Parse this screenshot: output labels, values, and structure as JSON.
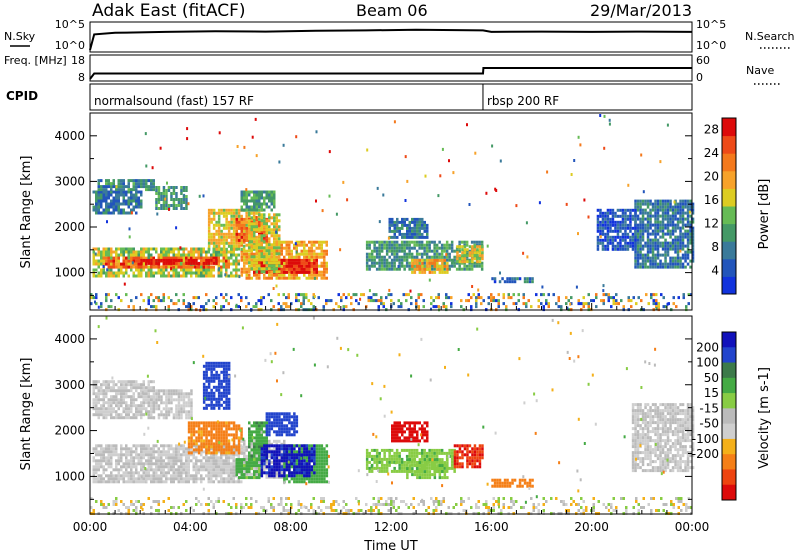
{
  "header": {
    "station": "Adak East (fitACF)",
    "beam": "Beam 06",
    "date": "29/Mar/2013"
  },
  "colors": {
    "power_scale": [
      "#1133dd",
      "#2255bb",
      "#3a7a9a",
      "#449966",
      "#66bb55",
      "#ddcc22",
      "#f7a22a",
      "#f4791c",
      "#ee4a18",
      "#dd0a0a"
    ],
    "velocity_scale": [
      "#1111bb",
      "#2244cc",
      "#3c7a4a",
      "#44aa44",
      "#88cc44",
      "#bbbbbb",
      "#cfcfcf",
      "#f4b01a",
      "#f57f17",
      "#ee4410",
      "#dd0a0a"
    ],
    "ground_scatter": "#aaaaaa"
  },
  "chart_data": [
    {
      "type": "line",
      "panel": "noise-sky-search",
      "ylabel_left": "N.Sky",
      "ylabel_right": "N.Search",
      "ytick_labels_left": [
        "10^5",
        "10^0"
      ],
      "ytick_labels_right": [
        "10^5",
        "10^0"
      ],
      "yscale": "log",
      "series": [
        {
          "x": [
            "00:00",
            "00:10",
            "01:00",
            "03:00",
            "05:00",
            "07:00",
            "09:00",
            "11:00",
            "13:00",
            "15:40",
            "16:00",
            "18:00",
            "20:00",
            "22:00",
            "24:00"
          ],
          "y": [
            1,
            1000,
            2000,
            3000,
            4000,
            3500,
            5000,
            6000,
            8000,
            6000,
            3000,
            3500,
            3000,
            3500,
            3000
          ]
        }
      ]
    },
    {
      "type": "line",
      "panel": "frequency-nave",
      "ylabel_left": "Freq. [MHz]",
      "ylabel_right": "Nave",
      "ytick_labels_left": [
        "18",
        "8"
      ],
      "ytick_labels_right": [
        "60",
        "0"
      ],
      "series": [
        {
          "x": [
            "00:00",
            "00:10",
            "15:40",
            "15:41",
            "24:00"
          ],
          "y": [
            8,
            10.5,
            10.5,
            13,
            13
          ]
        }
      ]
    },
    {
      "type": "table",
      "panel": "cpid",
      "label": "CPID",
      "segments": [
        {
          "start": "00:00",
          "end": "15:40",
          "name": "normalsound (fast) 157 RF"
        },
        {
          "start": "15:40",
          "end": "24:00",
          "name": "rbsp 200 RF"
        }
      ]
    },
    {
      "type": "heatmap",
      "panel": "power",
      "ylabel": "Slant Range [km]",
      "yticks": [
        1000,
        2000,
        3000,
        4000
      ],
      "ylim": [
        180,
        4500
      ],
      "colorbar_label": "Power [dB]",
      "colorbar_ticks": [
        4,
        8,
        12,
        16,
        20,
        24,
        28
      ],
      "clim": [
        0,
        30
      ],
      "regions": [
        {
          "t": [
            0.1,
            5.9
          ],
          "r": [
            900,
            1550
          ],
          "v": 15
        },
        {
          "t": [
            0.5,
            5.5
          ],
          "r": [
            1100,
            1350
          ],
          "v": 24
        },
        {
          "t": [
            2.0,
            5.0
          ],
          "r": [
            1200,
            1300
          ],
          "v": 30
        },
        {
          "t": [
            6.0,
            9.4
          ],
          "r": [
            900,
            1700
          ],
          "v": 20
        },
        {
          "t": [
            6.5,
            9.0
          ],
          "r": [
            1000,
            1300
          ],
          "v": 28
        },
        {
          "t": [
            4.7,
            6.8
          ],
          "r": [
            1500,
            2400
          ],
          "v": 17
        },
        {
          "t": [
            5.8,
            7.0
          ],
          "r": [
            1700,
            2200
          ],
          "v": 24
        },
        {
          "t": [
            6.3,
            7.5
          ],
          "r": [
            1000,
            2300
          ],
          "v": 16
        },
        {
          "t": [
            6.0,
            7.3
          ],
          "r": [
            2400,
            2800
          ],
          "v": 11
        },
        {
          "t": [
            0.1,
            2.0
          ],
          "r": [
            2300,
            2800
          ],
          "v": 7
        },
        {
          "t": [
            0.3,
            2.5
          ],
          "r": [
            2800,
            3050
          ],
          "v": 9
        },
        {
          "t": [
            2.6,
            3.8
          ],
          "r": [
            2400,
            2900
          ],
          "v": 10
        },
        {
          "t": [
            11.0,
            15.6
          ],
          "r": [
            1100,
            1700
          ],
          "v": 10
        },
        {
          "t": [
            12.8,
            14.2
          ],
          "r": [
            1000,
            1300
          ],
          "v": 20
        },
        {
          "t": [
            14.6,
            15.6
          ],
          "r": [
            1250,
            1600
          ],
          "v": 17
        },
        {
          "t": [
            11.9,
            13.4
          ],
          "r": [
            1800,
            2200
          ],
          "v": 7
        },
        {
          "t": [
            16.0,
            17.6
          ],
          "r": [
            800,
            900
          ],
          "v": 6
        },
        {
          "t": [
            21.7,
            24.0
          ],
          "r": [
            1100,
            2600
          ],
          "v": 7
        },
        {
          "t": [
            20.2,
            21.7
          ],
          "r": [
            1500,
            2400
          ],
          "v": 4
        },
        {
          "t": [
            0.0,
            24.0
          ],
          "r": [
            180,
            550
          ],
          "v": 12
        }
      ]
    },
    {
      "type": "heatmap",
      "panel": "velocity",
      "ylabel": "Slant Range [km]",
      "yticks": [
        1000,
        2000,
        3000,
        4000
      ],
      "ylim": [
        180,
        4500
      ],
      "xlabel": "Time UT",
      "xtick_labels": [
        "00:00",
        "04:00",
        "08:00",
        "12:00",
        "16:00",
        "20:00",
        "00:00"
      ],
      "xlim": [
        0,
        24
      ],
      "colorbar_label": "Velocity [m s-1]",
      "colorbar_ticks": [
        200,
        100,
        50,
        15,
        -15,
        -50,
        -100,
        -200
      ],
      "clim": [
        250,
        -250
      ],
      "regions": [
        {
          "t": [
            0.1,
            6.0
          ],
          "r": [
            900,
            1700
          ],
          "v": 0
        },
        {
          "t": [
            3.9,
            6.0
          ],
          "r": [
            1500,
            2200
          ],
          "v": -40
        },
        {
          "t": [
            6.0,
            7.7
          ],
          "r": [
            1000,
            1800
          ],
          "v": 0
        },
        {
          "t": [
            7.7,
            9.4
          ],
          "r": [
            900,
            1700
          ],
          "v": 60
        },
        {
          "t": [
            6.3,
            7.0
          ],
          "r": [
            1400,
            2200
          ],
          "v": 70
        },
        {
          "t": [
            5.8,
            6.8
          ],
          "r": [
            1000,
            1400
          ],
          "v": 40
        },
        {
          "t": [
            7.0,
            8.2
          ],
          "r": [
            1900,
            2400
          ],
          "v": 200
        },
        {
          "t": [
            6.8,
            8.9
          ],
          "r": [
            1000,
            1700
          ],
          "v": 230
        },
        {
          "t": [
            4.5,
            5.5
          ],
          "r": [
            2500,
            3500
          ],
          "v": 200
        },
        {
          "t": [
            0.1,
            2.5
          ],
          "r": [
            2300,
            3100
          ],
          "v": 0
        },
        {
          "t": [
            2.5,
            4.0
          ],
          "r": [
            2300,
            2900
          ],
          "v": 0
        },
        {
          "t": [
            11.0,
            14.5
          ],
          "r": [
            1100,
            1600
          ],
          "v": 25
        },
        {
          "t": [
            12.6,
            14.2
          ],
          "r": [
            1000,
            1400
          ],
          "v": 25
        },
        {
          "t": [
            14.5,
            15.6
          ],
          "r": [
            1200,
            1700
          ],
          "v": -150
        },
        {
          "t": [
            12.0,
            13.4
          ],
          "r": [
            1800,
            2200
          ],
          "v": -200
        },
        {
          "t": [
            16.0,
            17.6
          ],
          "r": [
            800,
            950
          ],
          "v": -60
        },
        {
          "t": [
            21.6,
            24.0
          ],
          "r": [
            1100,
            2600
          ],
          "v": 0
        },
        {
          "t": [
            0.0,
            24.0
          ],
          "r": [
            180,
            550
          ],
          "v": 0
        }
      ]
    }
  ]
}
